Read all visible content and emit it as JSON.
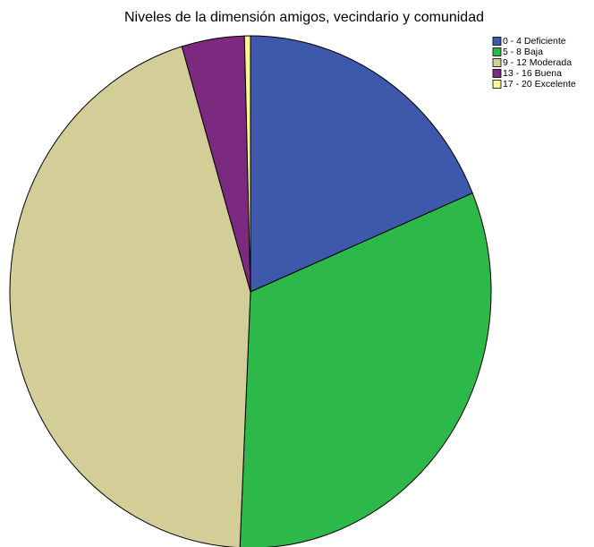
{
  "chart_data": {
    "type": "pie",
    "title": "Niveles de la dimensión amigos, vecindario y comunidad",
    "categories": [
      "0 - 4 Deficiente",
      "5 - 8 Baja",
      "9 - 12 Moderada",
      "13 - 16 Buena",
      "17 - 20 Excelente"
    ],
    "values": [
      18.7,
      32.0,
      44.7,
      4.2,
      0.4
    ],
    "colors": [
      "#3e58ac",
      "#2db84a",
      "#d3ce98",
      "#7b2a7f",
      "#fbf78f"
    ],
    "legend": "top-right"
  }
}
